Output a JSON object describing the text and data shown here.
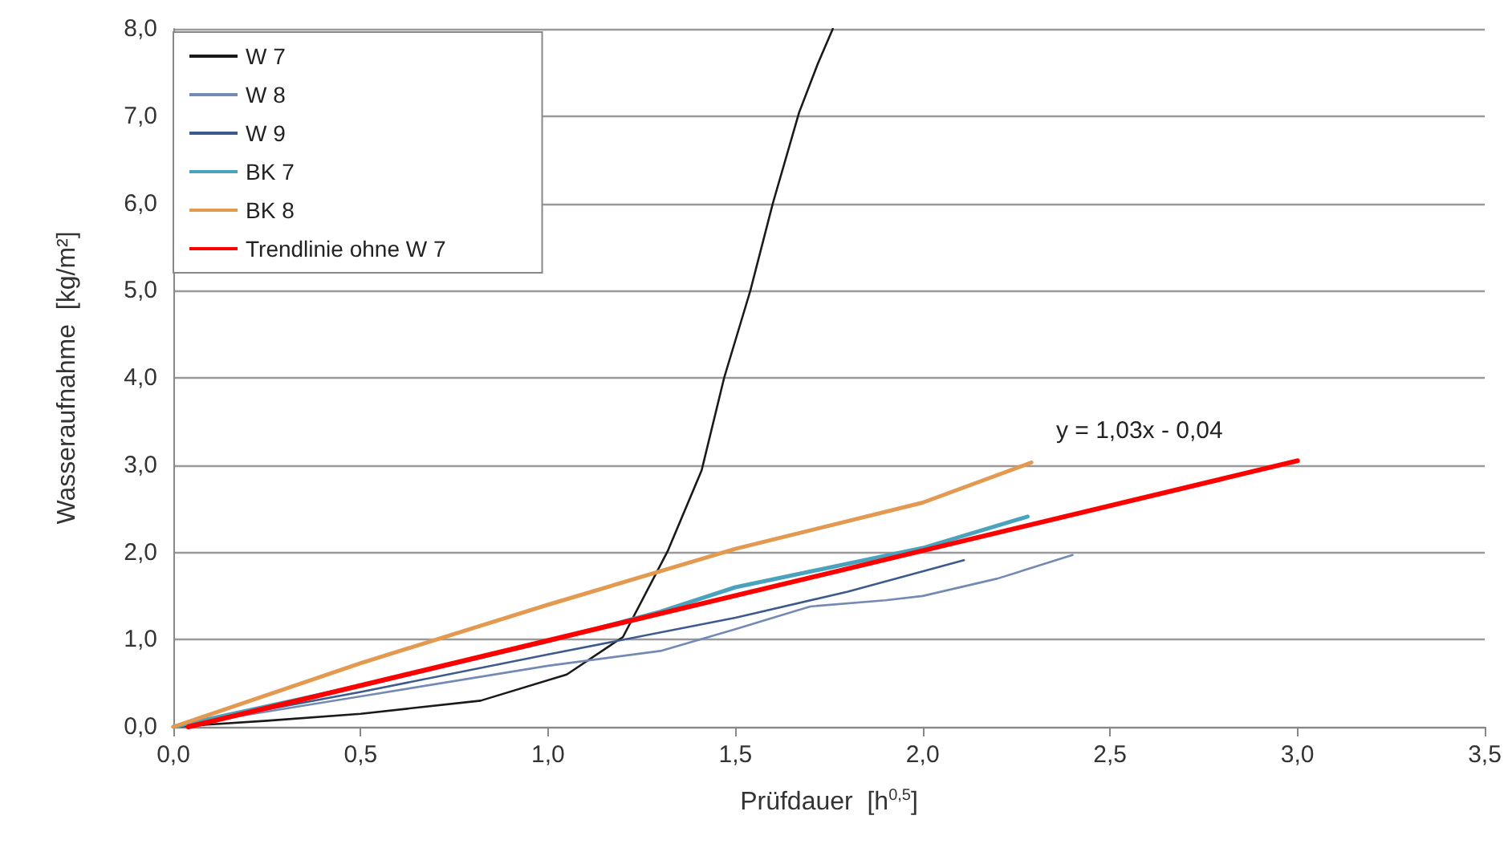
{
  "chart_data": {
    "type": "line",
    "xlabel": "Prüfdauer  [h$^{0,5}$]",
    "ylabel": "Wasseraufnahme  [kg/m²]",
    "xlim": [
      0,
      3.5
    ],
    "ylim": [
      0,
      8
    ],
    "xticks": [
      {
        "value": 0,
        "label": "0,0"
      },
      {
        "value": 0.5,
        "label": "0,5"
      },
      {
        "value": 1,
        "label": "1,0"
      },
      {
        "value": 1.5,
        "label": "1,5"
      },
      {
        "value": 2,
        "label": "2,0"
      },
      {
        "value": 2.5,
        "label": "2,5"
      },
      {
        "value": 3,
        "label": "3,0"
      },
      {
        "value": 3.5,
        "label": "3,5"
      }
    ],
    "yticks": [
      {
        "value": 0,
        "label": "0,0"
      },
      {
        "value": 1,
        "label": "1,0"
      },
      {
        "value": 2,
        "label": "2,0"
      },
      {
        "value": 3,
        "label": "3,0"
      },
      {
        "value": 4,
        "label": "4,0"
      },
      {
        "value": 5,
        "label": "5,0"
      },
      {
        "value": 6,
        "label": "6,0"
      },
      {
        "value": 7,
        "label": "7,0"
      },
      {
        "value": 8,
        "label": "8,0"
      }
    ],
    "grid": "y",
    "legend": "top left",
    "marker": "none",
    "line_style": "solid",
    "annotations": [
      "y = 1,03x - 0,04"
    ],
    "series": [
      {
        "name": "W 7",
        "color": "#1a1a1a",
        "x": [
          0,
          0.25,
          0.5,
          0.82,
          1.05,
          1.2,
          1.32,
          1.41,
          1.47,
          1.54,
          1.6,
          1.67,
          1.72,
          1.76
        ],
        "values": [
          0,
          0.07,
          0.15,
          0.3,
          0.6,
          1.03,
          2.02,
          2.94,
          4.0,
          5.0,
          6.0,
          7.04,
          7.6,
          8.0
        ]
      },
      {
        "name": "W 8",
        "color": "#7589b5",
        "x": [
          0,
          0.5,
          1.0,
          1.3,
          1.5,
          1.7,
          1.9,
          2.0,
          2.2,
          2.4
        ],
        "values": [
          0,
          0.35,
          0.7,
          0.87,
          1.12,
          1.38,
          1.45,
          1.5,
          1.7,
          1.97
        ]
      },
      {
        "name": "W 9",
        "color": "#3d5a8c",
        "x": [
          0,
          0.5,
          1.0,
          1.5,
          1.8,
          2.11
        ],
        "values": [
          0,
          0.4,
          0.83,
          1.25,
          1.55,
          1.91
        ]
      },
      {
        "name": "BK 7",
        "color": "#4aa3bd",
        "x": [
          0,
          0.5,
          1.0,
          1.3,
          1.5,
          2.0,
          2.28
        ],
        "values": [
          0,
          0.47,
          0.98,
          1.32,
          1.6,
          2.05,
          2.41
        ]
      },
      {
        "name": "BK 8",
        "color": "#e3994f",
        "x": [
          0,
          0.5,
          1.0,
          1.5,
          2.0,
          2.29
        ],
        "values": [
          0,
          0.73,
          1.4,
          2.04,
          2.57,
          3.03
        ]
      },
      {
        "name": "Trendlinie ohne W 7",
        "color": "#ff0000",
        "x": [
          0.04,
          3.0
        ],
        "values": [
          0,
          3.05
        ]
      }
    ]
  }
}
